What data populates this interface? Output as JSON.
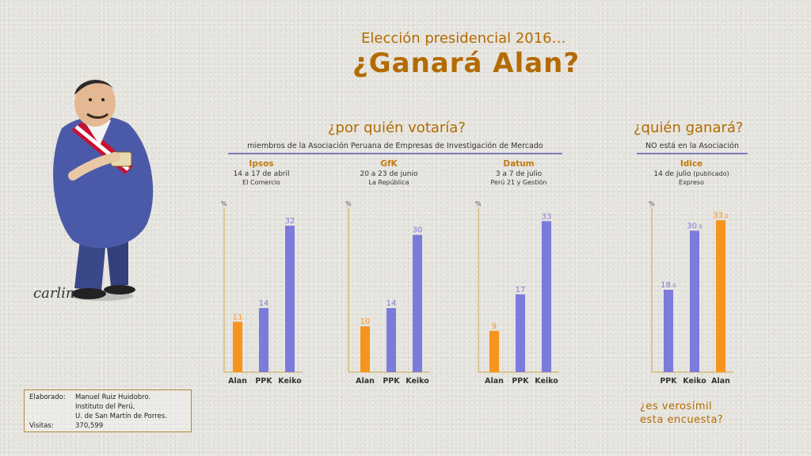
{
  "header": {
    "subtitle": "Elección presidencial 2016…",
    "title": "¿Ganará Alan?"
  },
  "vote_section": {
    "question": "¿por quién votaría?",
    "note": "miembros de la Asociación Peruana de Empresas de Investigación de Mercado"
  },
  "win_section": {
    "question": "¿quién ganará?",
    "note": "NO está en la Asociación"
  },
  "polls": [
    {
      "name": "Ipsos",
      "date": "14 a 17 de abril",
      "source": "El Comercio"
    },
    {
      "name": "GfK",
      "date": "20 a 23 de junio",
      "source": "La República"
    },
    {
      "name": "Datum",
      "date": "3 a 7 de julio",
      "source": "Perú 21 y Gestión"
    },
    {
      "name": "Idice",
      "date": "14 de julio",
      "date_note": "(publicado)",
      "source": "Expreso"
    }
  ],
  "credit": {
    "label_made": "Elaborado:",
    "author": "Manuel Ruiz Huidobro.",
    "line2": "Instituto del Perú,",
    "line3": "U. de San Martín de Porres.",
    "label_visits": "Visitas:",
    "visits": "370,599"
  },
  "closing_question": {
    "line1": "¿es verosímil",
    "line2": "esta encuesta?"
  },
  "caricature": {
    "signature": "carlin"
  },
  "colors": {
    "alan": "#f7941d",
    "others": "#7b7bdc",
    "accent": "#b36b00",
    "axis": "#c9a64e"
  },
  "chart_data": [
    {
      "type": "bar",
      "unit": "%",
      "categories": [
        "Alan",
        "PPK",
        "Keiko"
      ],
      "values": [
        11,
        14,
        32
      ],
      "value_labels": [
        [
          "11",
          ""
        ],
        [
          "14",
          ""
        ],
        [
          "32",
          ""
        ]
      ],
      "ylim": [
        0,
        36
      ]
    },
    {
      "type": "bar",
      "unit": "%",
      "categories": [
        "Alan",
        "PPK",
        "Keiko"
      ],
      "values": [
        10,
        14,
        30
      ],
      "value_labels": [
        [
          "10",
          ""
        ],
        [
          "14",
          ""
        ],
        [
          "30",
          ""
        ]
      ],
      "ylim": [
        0,
        36
      ]
    },
    {
      "type": "bar",
      "unit": "%",
      "categories": [
        "Alan",
        "PPK",
        "Keiko"
      ],
      "values": [
        9,
        17,
        33
      ],
      "value_labels": [
        [
          "9",
          ""
        ],
        [
          "17",
          ""
        ],
        [
          "33",
          ""
        ]
      ],
      "ylim": [
        0,
        36
      ]
    },
    {
      "type": "bar",
      "unit": "%",
      "categories": [
        "PPK",
        "Keiko",
        "Alan"
      ],
      "values": [
        18.0,
        30.9,
        33.2
      ],
      "value_labels": [
        [
          "18",
          ".0"
        ],
        [
          "30",
          ".9"
        ],
        [
          "33",
          ".2"
        ]
      ],
      "ylim": [
        0,
        36
      ]
    }
  ]
}
